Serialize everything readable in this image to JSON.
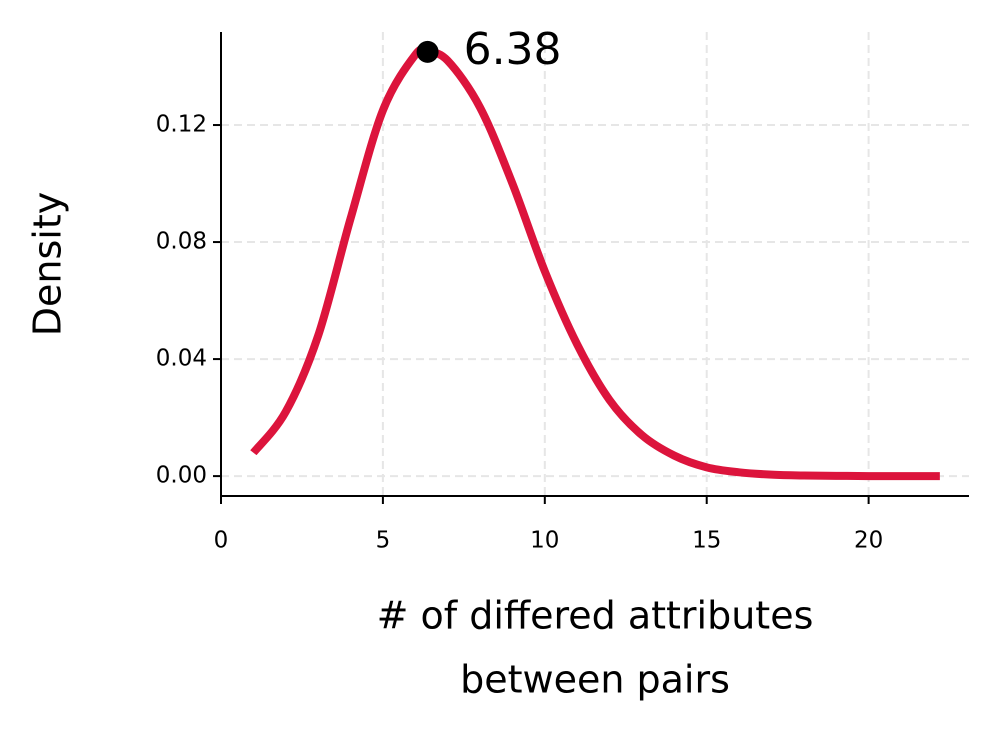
{
  "chart_data": {
    "type": "line",
    "ylabel": "Density",
    "xlabel": [
      "# of differed attributes",
      "between pairs"
    ],
    "x": [
      1,
      2,
      3,
      4,
      5,
      6,
      6.38,
      7,
      8,
      9,
      10,
      11,
      12,
      13,
      14,
      15,
      16,
      17,
      18,
      19,
      20,
      21,
      22.2
    ],
    "series": [
      {
        "name": "density",
        "color": "#dc143c",
        "values": [
          0.008,
          0.022,
          0.048,
          0.088,
          0.125,
          0.144,
          0.145,
          0.142,
          0.126,
          0.1,
          0.07,
          0.045,
          0.026,
          0.014,
          0.007,
          0.003,
          0.0013,
          0.0005,
          0.0002,
          0.0001,
          0,
          0,
          0
        ]
      }
    ],
    "annotations": [
      {
        "x": 6.38,
        "y": 0.145,
        "label": "6.38"
      }
    ],
    "xlim": [
      0,
      23.1
    ],
    "ylim": [
      -0.0068,
      0.1518
    ],
    "xticks": [
      0,
      5,
      10,
      15,
      20
    ],
    "yticks": [
      {
        "value": 0,
        "label": "0.00"
      },
      {
        "value": 0.04,
        "label": "0.04"
      },
      {
        "value": 0.08,
        "label": "0.08"
      },
      {
        "value": 0.12,
        "label": "0.12"
      }
    ],
    "grid": true
  }
}
